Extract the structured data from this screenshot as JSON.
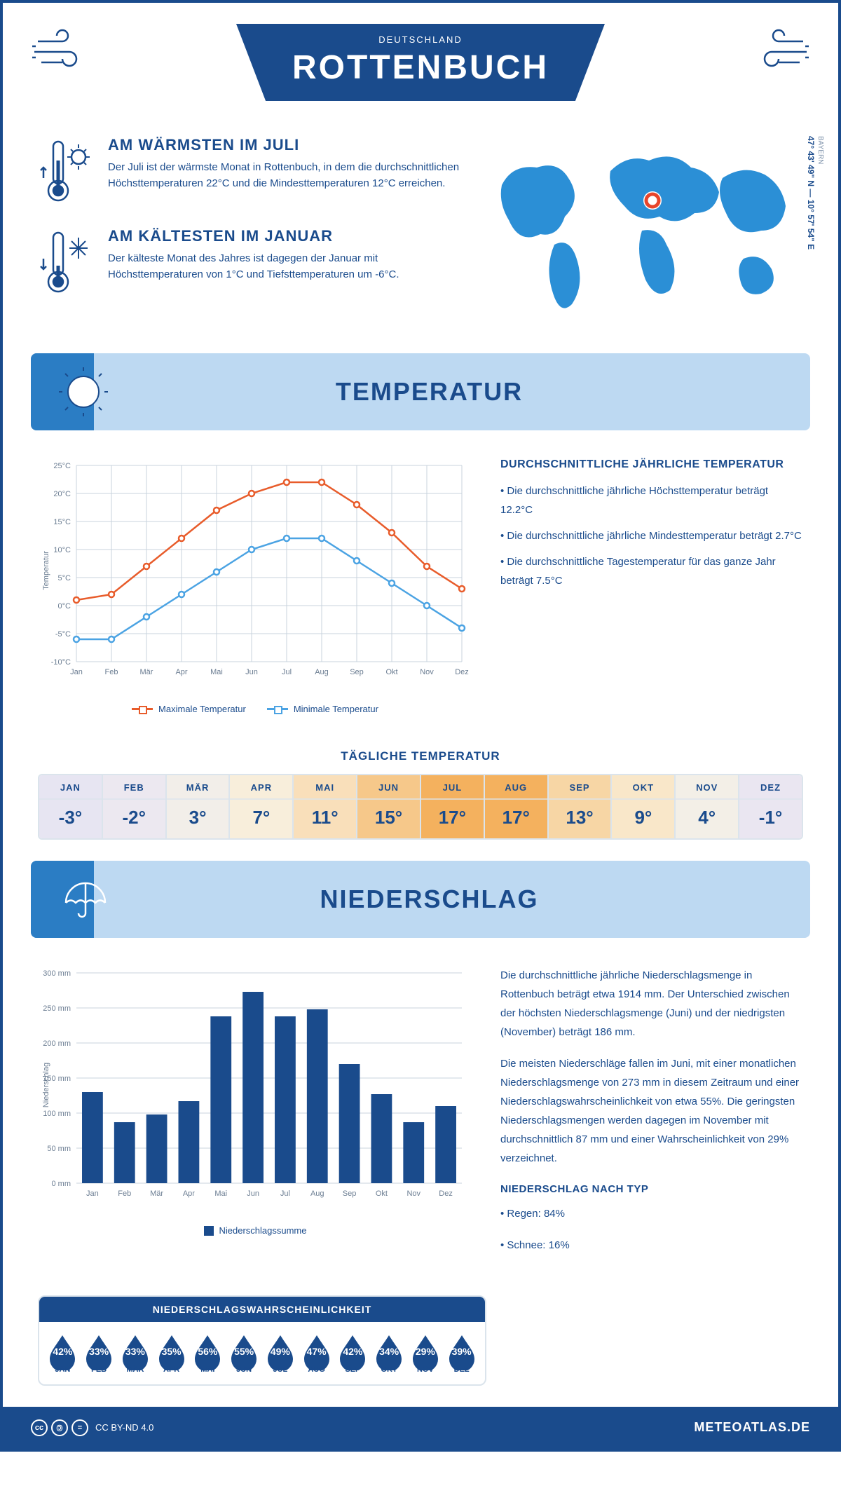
{
  "header": {
    "title": "ROTTENBUCH",
    "subtitle": "DEUTSCHLAND"
  },
  "coords": "47° 43' 49\" N — 10° 57' 54\" E",
  "region": "BAYERN",
  "warmest": {
    "title": "AM WÄRMSTEN IM JULI",
    "text": "Der Juli ist der wärmste Monat in Rottenbuch, in dem die durchschnittlichen Höchsttemperaturen 22°C und die Mindesttemperaturen 12°C erreichen."
  },
  "coldest": {
    "title": "AM KÄLTESTEN IM JANUAR",
    "text": "Der kälteste Monat des Jahres ist dagegen der Januar mit Höchsttemperaturen von 1°C und Tiefsttemperaturen um -6°C."
  },
  "temp_section": {
    "title": "TEMPERATUR"
  },
  "temp_chart": {
    "type": "line",
    "months": [
      "Jan",
      "Feb",
      "Mär",
      "Apr",
      "Mai",
      "Jun",
      "Jul",
      "Aug",
      "Sep",
      "Okt",
      "Nov",
      "Dez"
    ],
    "max_values": [
      1,
      2,
      7,
      12,
      17,
      20,
      22,
      22,
      18,
      13,
      7,
      3
    ],
    "min_values": [
      -6,
      -6,
      -2,
      2,
      6,
      10,
      12,
      12,
      8,
      4,
      0,
      -4
    ],
    "max_color": "#e85c2b",
    "min_color": "#4ba3e3",
    "ylabel": "Temperatur",
    "ylim": [
      -10,
      25
    ],
    "ytick_step": 5,
    "grid_color": "#c8d3de",
    "background": "#ffffff",
    "legend": {
      "max": "Maximale Temperatur",
      "min": "Minimale Temperatur"
    }
  },
  "temp_info": {
    "title": "DURCHSCHNITTLICHE JÄHRLICHE TEMPERATUR",
    "bullets": [
      "• Die durchschnittliche jährliche Höchsttemperatur beträgt 12.2°C",
      "• Die durchschnittliche jährliche Mindesttemperatur beträgt 2.7°C",
      "• Die durchschnittliche Tagestemperatur für das ganze Jahr beträgt 7.5°C"
    ]
  },
  "daily": {
    "title": "TÄGLICHE TEMPERATUR",
    "months": [
      "JAN",
      "FEB",
      "MÄR",
      "APR",
      "MAI",
      "JUN",
      "JUL",
      "AUG",
      "SEP",
      "OKT",
      "NOV",
      "DEZ"
    ],
    "values": [
      "-3°",
      "-2°",
      "3°",
      "7°",
      "11°",
      "15°",
      "17°",
      "17°",
      "13°",
      "9°",
      "4°",
      "-1°"
    ],
    "colors": [
      "#e7e5f2",
      "#ece8f0",
      "#f2eee9",
      "#f8eedb",
      "#f9dfba",
      "#f6c88a",
      "#f4b15e",
      "#f4b15e",
      "#f7d6a5",
      "#f9e7c9",
      "#f3efe7",
      "#eae6f1"
    ]
  },
  "precip_section": {
    "title": "NIEDERSCHLAG"
  },
  "precip_chart": {
    "type": "bar",
    "months": [
      "Jan",
      "Feb",
      "Mär",
      "Apr",
      "Mai",
      "Jun",
      "Jul",
      "Aug",
      "Sep",
      "Okt",
      "Nov",
      "Dez"
    ],
    "values": [
      130,
      87,
      98,
      117,
      238,
      273,
      238,
      248,
      170,
      127,
      87,
      110
    ],
    "bar_color": "#1a4b8c",
    "ylabel": "Niederschlag",
    "ylim": [
      0,
      300
    ],
    "ytick_step": 50,
    "grid_color": "#c8d3de",
    "legend_label": "Niederschlagssumme"
  },
  "precip_text": {
    "p1": "Die durchschnittliche jährliche Niederschlagsmenge in Rottenbuch beträgt etwa 1914 mm. Der Unterschied zwischen der höchsten Niederschlagsmenge (Juni) und der niedrigsten (November) beträgt 186 mm.",
    "p2": "Die meisten Niederschläge fallen im Juni, mit einer monatlichen Niederschlagsmenge von 273 mm in diesem Zeitraum und einer Niederschlagswahrscheinlichkeit von etwa 55%. Die geringsten Niederschlagsmengen werden dagegen im November mit durchschnittlich 87 mm und einer Wahrscheinlichkeit von 29% verzeichnet.",
    "type_title": "NIEDERSCHLAG NACH TYP",
    "type_bullets": [
      "• Regen: 84%",
      "• Schnee: 16%"
    ]
  },
  "probability": {
    "title": "NIEDERSCHLAGSWAHRSCHEINLICHKEIT",
    "months": [
      "JAN",
      "FEB",
      "MÄR",
      "APR",
      "MAI",
      "JUN",
      "JUL",
      "AUG",
      "SEP",
      "OKT",
      "NOV",
      "DEZ"
    ],
    "values": [
      "42%",
      "33%",
      "33%",
      "35%",
      "56%",
      "55%",
      "49%",
      "47%",
      "42%",
      "34%",
      "29%",
      "39%"
    ],
    "drop_color": "#1a4b8c"
  },
  "footer": {
    "license": "CC BY-ND 4.0",
    "brand": "METEOATLAS.DE"
  }
}
